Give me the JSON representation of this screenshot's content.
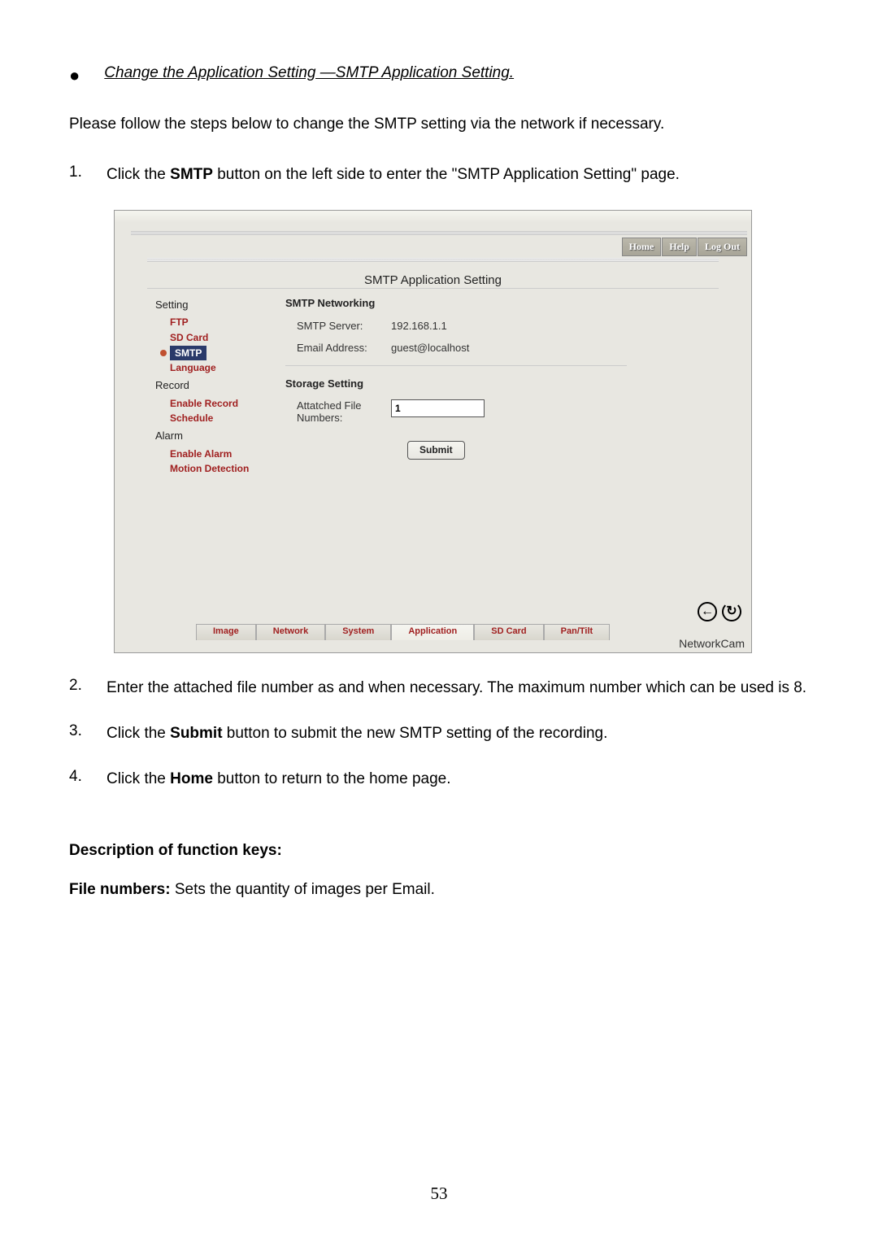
{
  "bullet": {
    "marker": "●",
    "text": "Change the Application Setting —SMTP Application Setting."
  },
  "intro": "Please follow the steps below to change the SMTP setting via the network if necessary.",
  "step1": {
    "num": "1.",
    "pre": "Click the ",
    "bold": "SMTP",
    "post": " button on the left side to enter the \"SMTP Application Setting\" page."
  },
  "screenshot": {
    "topbtns": [
      "Home",
      "Help",
      "Log Out"
    ],
    "title": "SMTP Application Setting",
    "sidebar": {
      "setting": "Setting",
      "ftp": "FTP",
      "sdcard": "SD Card",
      "smtp": "SMTP",
      "language": "Language",
      "record": "Record",
      "enable_record": "Enable Record",
      "schedule": "Schedule",
      "alarm": "Alarm",
      "enable_alarm": "Enable Alarm",
      "motion": "Motion Detection"
    },
    "form": {
      "smtp_networking": "SMTP Networking",
      "smtp_server_label": "SMTP Server:",
      "smtp_server_value": "192.168.1.1",
      "email_label": "Email Address:",
      "email_value": "guest@localhost",
      "storage_setting": "Storage Setting",
      "file_numbers_label": "Attatched File Numbers:",
      "file_numbers_value": "1",
      "submit": "Submit"
    },
    "tabs": [
      "Image",
      "Network",
      "System",
      "Application",
      "SD Card",
      "Pan/Tilt"
    ],
    "brand": "NetworkCam",
    "icons": {
      "back": "←",
      "refresh": "↻"
    }
  },
  "step2": {
    "num": "2.",
    "text": "Enter the attached file number as and when necessary. The maximum number which can be used is 8."
  },
  "step3": {
    "num": "3.",
    "pre": "Click the ",
    "bold": "Submit",
    "post": " button to submit the new SMTP setting of the recording."
  },
  "step4": {
    "num": "4.",
    "pre": "Click the ",
    "bold": "Home",
    "post": " button to return to the home page."
  },
  "desc_hdr": "Description of function keys:",
  "desc_item": {
    "bold": "File numbers:",
    "text": " Sets the quantity of images per Email."
  },
  "page_num": "53"
}
